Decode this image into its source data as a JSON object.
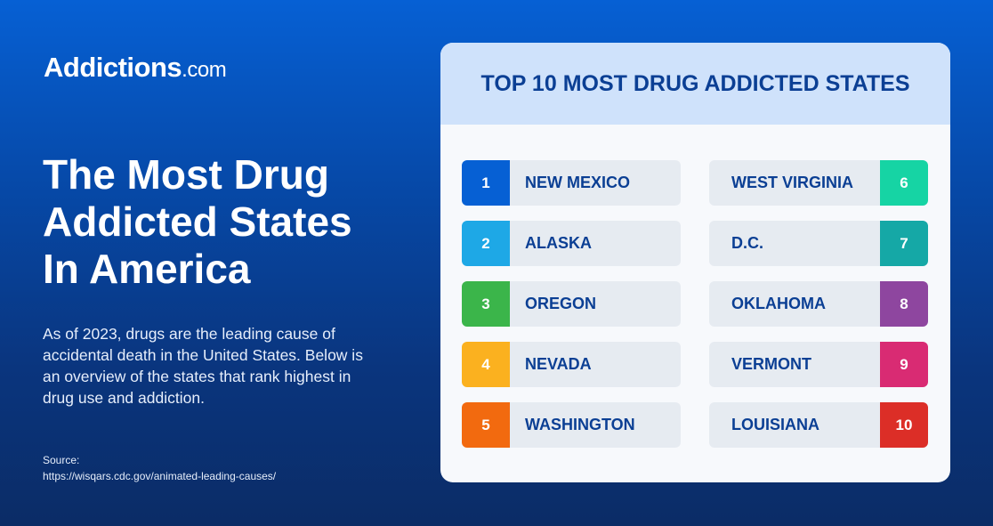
{
  "logo": {
    "name": "Addictions",
    "suffix": ".com"
  },
  "title_lines": [
    "The Most Drug",
    "Addicted States",
    "In America"
  ],
  "description": "As of 2023, drugs are the leading cause of accidental death in the United States. Below is an overview of the states that rank highest in drug use and addiction.",
  "source": {
    "label": "Source:",
    "url": "https://wisqars.cdc.gov/animated-leading-causes/"
  },
  "card": {
    "title": "TOP 10 MOST DRUG ADDICTED STATES",
    "states": [
      {
        "rank": "1",
        "name": "NEW MEXICO",
        "color": "#0660d4"
      },
      {
        "rank": "2",
        "name": "ALASKA",
        "color": "#1ea8e6"
      },
      {
        "rank": "3",
        "name": "OREGON",
        "color": "#3bb54a"
      },
      {
        "rank": "4",
        "name": "NEVADA",
        "color": "#fbb11f"
      },
      {
        "rank": "5",
        "name": "WASHINGTON",
        "color": "#f26a0f"
      },
      {
        "rank": "6",
        "name": "WEST VIRGINIA",
        "color": "#16d4a4"
      },
      {
        "rank": "7",
        "name": "D.C.",
        "color": "#15a8a6"
      },
      {
        "rank": "8",
        "name": "OKLAHOMA",
        "color": "#8e469f"
      },
      {
        "rank": "9",
        "name": "VERMONT",
        "color": "#d92b73"
      },
      {
        "rank": "10",
        "name": "LOUISIANA",
        "color": "#dc2e27"
      }
    ]
  }
}
